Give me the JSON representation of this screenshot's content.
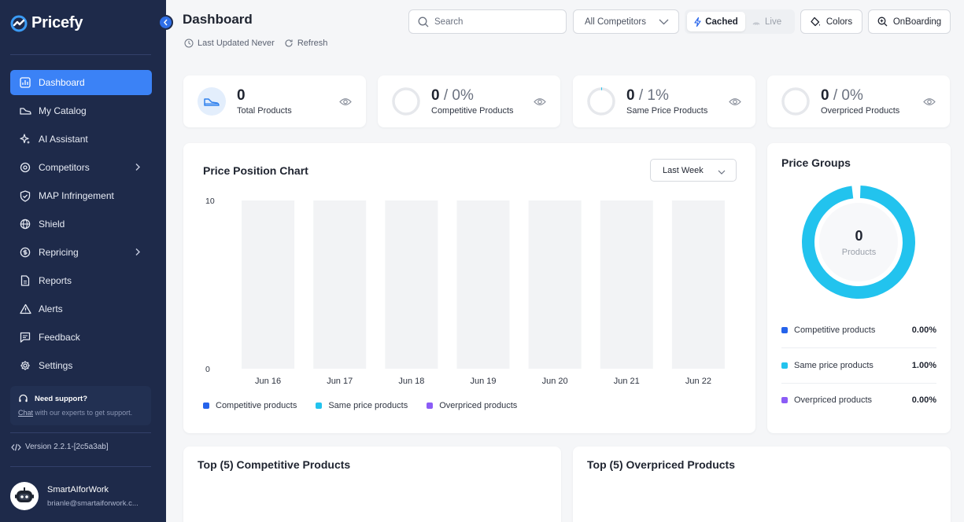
{
  "app": {
    "name": "Pricefy"
  },
  "sidebar": {
    "items": [
      {
        "label": "Dashboard",
        "icon": "chart-icon"
      },
      {
        "label": "My Catalog",
        "icon": "shoe-icon"
      },
      {
        "label": "AI Assistant",
        "icon": "sparkle-icon"
      },
      {
        "label": "Competitors",
        "icon": "target-icon"
      },
      {
        "label": "MAP Infringement",
        "icon": "shield-check-icon"
      },
      {
        "label": "Shield",
        "icon": "globe-icon"
      },
      {
        "label": "Repricing",
        "icon": "reprice-icon"
      },
      {
        "label": "Reports",
        "icon": "document-icon"
      },
      {
        "label": "Alerts",
        "icon": "warning-icon"
      },
      {
        "label": "Feedback",
        "icon": "message-icon"
      },
      {
        "label": "Settings",
        "icon": "gear-icon"
      }
    ],
    "support": {
      "title": "Need support?",
      "link": "Chat",
      "text": " with our experts to get support."
    },
    "version": "Version 2.2.1-[2c5a3ab]",
    "user": {
      "name": "SmartAIforWork",
      "email": "brianle@smartaiforwork.c..."
    }
  },
  "header": {
    "title": "Dashboard",
    "last_updated": "Last Updated Never",
    "refresh": "Refresh",
    "search_placeholder": "Search",
    "competitor_select": "All Competitors",
    "toggle": {
      "cached": "Cached",
      "live": "Live"
    },
    "colors_button": "Colors",
    "onboarding_button": "OnBoarding"
  },
  "stats": [
    {
      "value": "0",
      "pct": "",
      "label": "Total Products",
      "ring_pct": null
    },
    {
      "value": "0",
      "pct": "0%",
      "label": "Competitive Products",
      "ring_pct": 0
    },
    {
      "value": "0",
      "pct": "1%",
      "label": "Same Price Products",
      "ring_pct": 1
    },
    {
      "value": "0",
      "pct": "0%",
      "label": "Overpriced Products",
      "ring_pct": 0
    }
  ],
  "chart_card": {
    "title": "Price Position Chart",
    "range_select": "Last Week"
  },
  "chart_data": {
    "type": "bar",
    "title": "Price Position Chart",
    "categories": [
      "Jun 16",
      "Jun 17",
      "Jun 18",
      "Jun 19",
      "Jun 20",
      "Jun 21",
      "Jun 22"
    ],
    "series": [
      {
        "name": "Competitive products",
        "color": "#2563eb",
        "values": [
          0,
          0,
          0,
          0,
          0,
          0,
          0
        ]
      },
      {
        "name": "Same price products",
        "color": "#22c3ee",
        "values": [
          0,
          0,
          0,
          0,
          0,
          0,
          0
        ]
      },
      {
        "name": "Overpriced products",
        "color": "#8b5cf6",
        "values": [
          0,
          0,
          0,
          0,
          0,
          0,
          0
        ]
      }
    ],
    "ylim": [
      0,
      10
    ],
    "yticks": [
      "10",
      "0"
    ],
    "legend": "bottom-left"
  },
  "price_groups": {
    "title": "Price Groups",
    "center_value": "0",
    "center_label": "Products",
    "rows": [
      {
        "label": "Competitive products",
        "value": "0.00%",
        "color": "#2563eb"
      },
      {
        "label": "Same price products",
        "value": "1.00%",
        "color": "#22c3ee"
      },
      {
        "label": "Overpriced products",
        "value": "0.00%",
        "color": "#8b5cf6"
      }
    ]
  },
  "bottom": {
    "competitive_title": "Top (5) Competitive Products",
    "overpriced_title": "Top (5) Overpriced Products"
  }
}
